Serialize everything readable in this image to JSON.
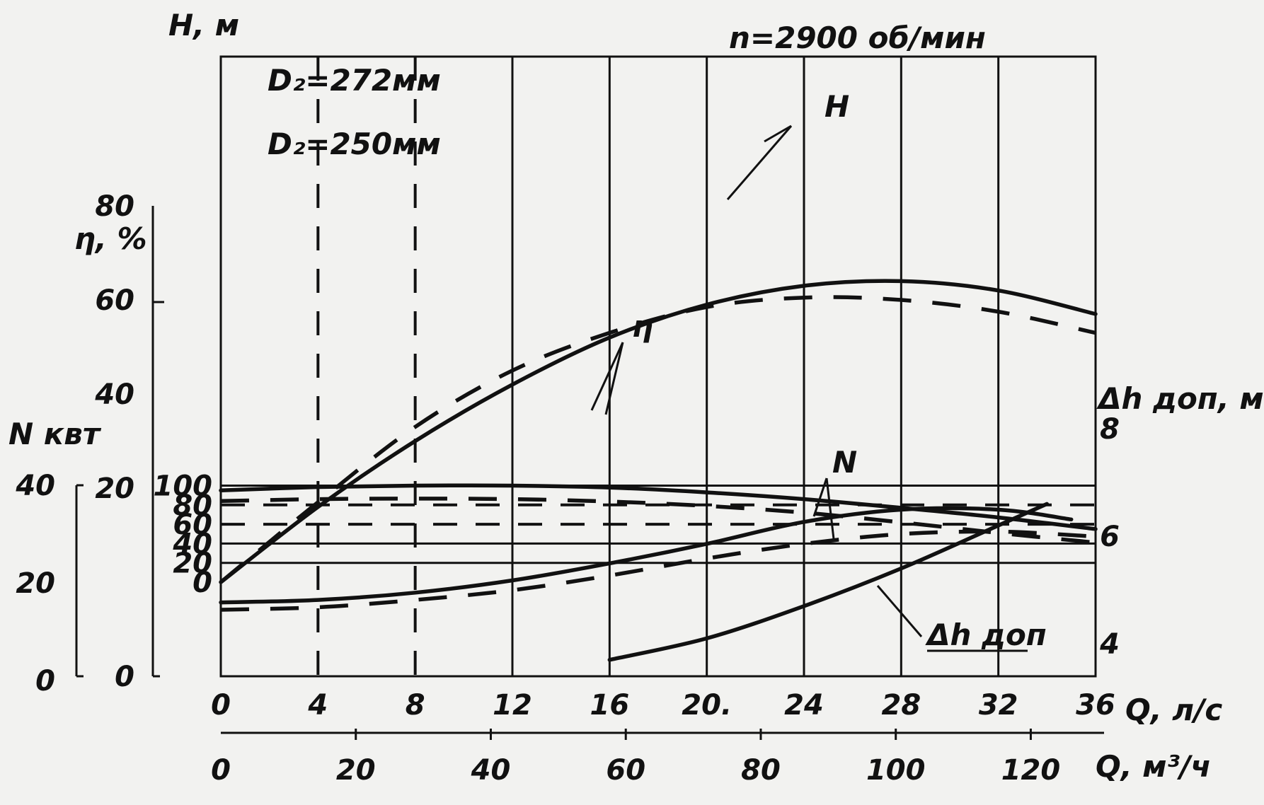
{
  "chart_data": {
    "type": "line",
    "speed_label": "n=2900 об/мин",
    "x_primary": {
      "label": "Q, л/с",
      "ticks": [
        "0",
        "4",
        "8",
        "12",
        "16",
        "20.",
        "24",
        "28",
        "32",
        "36"
      ],
      "range": [
        0,
        36
      ]
    },
    "x_secondary": {
      "label": "Q, м³/ч",
      "ticks": [
        "0",
        "20",
        "40",
        "60",
        "80",
        "100",
        "120"
      ],
      "values": [
        0,
        20,
        40,
        60,
        80,
        100,
        120
      ]
    },
    "y_head": {
      "label": "H, м",
      "ticks": [
        "0",
        "20",
        "40",
        "60",
        "80",
        "100"
      ],
      "values": [
        0,
        20,
        40,
        60,
        80,
        100
      ]
    },
    "y_eff": {
      "label": "η, %",
      "ticks": [
        "0",
        "20",
        "40",
        "60",
        "80"
      ],
      "values": [
        0,
        20,
        40,
        60,
        80
      ]
    },
    "y_power": {
      "label": "N квт",
      "ticks": [
        "0",
        "20",
        "40"
      ],
      "values": [
        0,
        20,
        40
      ]
    },
    "y_npsh": {
      "label": "Δh доп, м",
      "ticks": [
        "4",
        "6",
        "8"
      ],
      "values": [
        4,
        6,
        8
      ]
    },
    "curve_labels": {
      "H": "H",
      "eta": "η",
      "N": "N",
      "npsh": "Δh доп",
      "d272": "D₂=272мм",
      "d250": "D₂=250мм"
    },
    "series": [
      {
        "name": "H",
        "diameter": "D₂=272мм",
        "axis": "head",
        "style": "solid",
        "x": [
          0,
          4,
          8,
          12,
          16,
          20,
          24,
          28,
          32,
          36
        ],
        "y": [
          95,
          98.5,
          100,
          100,
          98,
          93,
          86,
          77,
          67,
          55
        ]
      },
      {
        "name": "H",
        "diameter": "D₂=250мм",
        "axis": "head",
        "style": "dashed",
        "x": [
          0,
          4,
          8,
          12,
          16,
          20,
          24,
          28,
          32,
          36
        ],
        "y": [
          84,
          86,
          86.5,
          86,
          83.5,
          79,
          72,
          62,
          51,
          41
        ]
      },
      {
        "name": "η",
        "diameter": "D₂=272мм",
        "axis": "efficiency",
        "style": "solid",
        "x": [
          0,
          4,
          8,
          12,
          16,
          20,
          24,
          28,
          32,
          36
        ],
        "y": [
          0,
          16,
          30,
          42,
          52,
          59,
          63,
          64,
          62,
          57
        ]
      },
      {
        "name": "η",
        "diameter": "D₂=250мм",
        "axis": "efficiency",
        "style": "dashed",
        "x": [
          0,
          4,
          8,
          12,
          16,
          20,
          24,
          28,
          32,
          36
        ],
        "y": [
          0,
          17,
          33,
          45,
          53,
          58.5,
          60.5,
          60,
          57.5,
          53
        ]
      },
      {
        "name": "N",
        "diameter": "D₂=272мм",
        "axis": "power",
        "style": "solid",
        "x": [
          0,
          4,
          8,
          12,
          16,
          20,
          24,
          28,
          32,
          35
        ],
        "y": [
          16,
          16.5,
          18,
          20.5,
          24,
          28,
          32.5,
          35,
          35,
          33
        ]
      },
      {
        "name": "N",
        "diameter": "D₂=250мм",
        "axis": "power",
        "style": "dashed",
        "x": [
          0,
          4,
          8,
          12,
          16,
          20,
          24,
          28,
          32,
          36
        ],
        "y": [
          14.5,
          15,
          16.5,
          18.5,
          21.5,
          25,
          28,
          30,
          30.5,
          29.5
        ]
      },
      {
        "name": "Δh доп",
        "axis": "npsh",
        "style": "solid",
        "x": [
          16,
          20,
          24,
          28,
          32,
          34
        ],
        "y": [
          3.7,
          4.1,
          4.7,
          5.4,
          6.2,
          6.6
        ]
      }
    ]
  }
}
